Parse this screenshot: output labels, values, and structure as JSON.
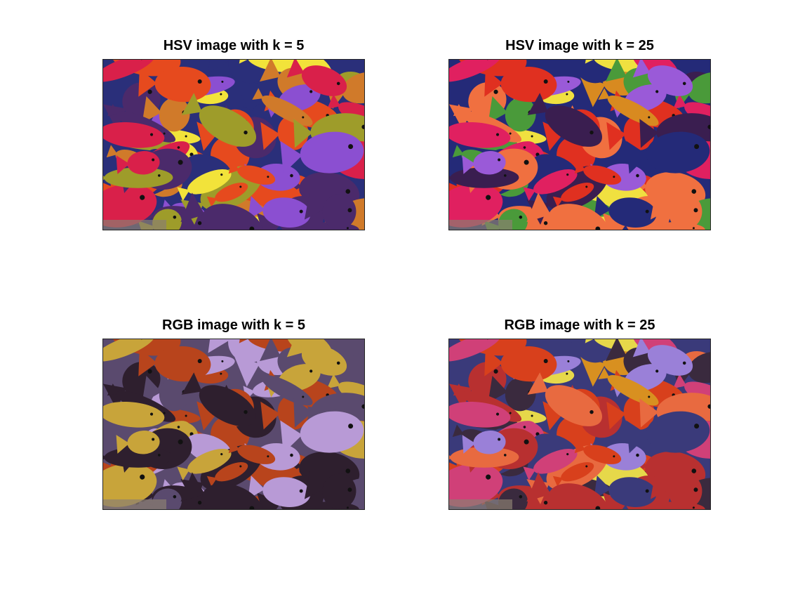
{
  "figure": {
    "panels": [
      {
        "title": "HSV image with k = 5",
        "palette": [
          "#e64a1e",
          "#f2e33a",
          "#d9204a",
          "#8b4fd1",
          "#2a2f7a",
          "#d07a2a",
          "#9e9c2a",
          "#4b2a6b"
        ]
      },
      {
        "title": "HSV image with k = 25",
        "palette": [
          "#e03020",
          "#f0e040",
          "#e02060",
          "#9a5ad8",
          "#242a78",
          "#d88a20",
          "#4a9a3a",
          "#3a1e50",
          "#f07040"
        ]
      },
      {
        "title": "RGB image with k = 5",
        "palette": [
          "#b8441c",
          "#c8a43a",
          "#b89ad6",
          "#5a4a6e",
          "#2e1f2e"
        ]
      },
      {
        "title": "RGB image with k = 25",
        "palette": [
          "#d8401c",
          "#e6d84a",
          "#d04078",
          "#9a80d8",
          "#3a3a7a",
          "#d89020",
          "#3a2a3e",
          "#e86a40",
          "#b83030"
        ]
      }
    ]
  }
}
